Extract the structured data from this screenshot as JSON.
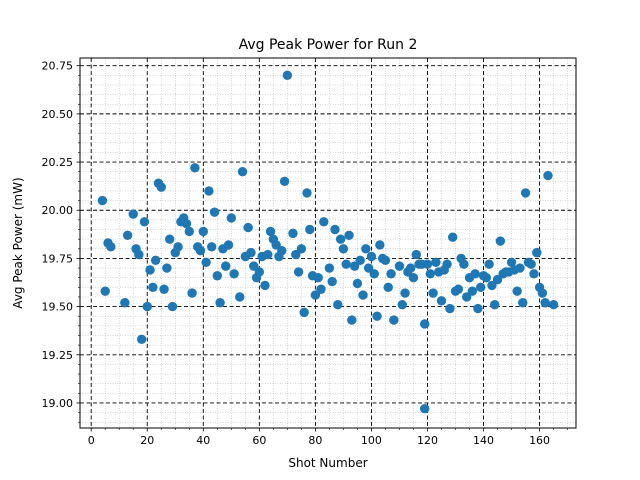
{
  "chart_data": {
    "type": "scatter",
    "title": "Avg Peak Power for Run 2",
    "xlabel": "Shot Number",
    "ylabel": "Avg Peak Power (mW)",
    "xlim": [
      -4,
      173
    ],
    "ylim": [
      18.87,
      20.79
    ],
    "xticks": [
      0,
      20,
      40,
      60,
      80,
      100,
      120,
      140,
      160
    ],
    "yticks": [
      19.0,
      19.25,
      19.5,
      19.75,
      20.0,
      20.25,
      20.5,
      20.75
    ],
    "xtick_labels": [
      "0",
      "20",
      "40",
      "60",
      "80",
      "100",
      "120",
      "140",
      "160"
    ],
    "ytick_labels": [
      "19.00",
      "19.25",
      "19.50",
      "19.75",
      "20.00",
      "20.25",
      "20.50",
      "20.75"
    ],
    "grid": {
      "major": true,
      "minor": true
    },
    "marker_color": "#1f77b4",
    "series": [
      {
        "points": [
          [
            4,
            20.05
          ],
          [
            5,
            19.58
          ],
          [
            6,
            19.83
          ],
          [
            7,
            19.81
          ],
          [
            12,
            19.52
          ],
          [
            13,
            19.87
          ],
          [
            15,
            19.98
          ],
          [
            16,
            19.8
          ],
          [
            17,
            19.77
          ],
          [
            18,
            19.33
          ],
          [
            19,
            19.94
          ],
          [
            20,
            19.5
          ],
          [
            21,
            19.69
          ],
          [
            22,
            19.6
          ],
          [
            23,
            19.74
          ],
          [
            24,
            20.14
          ],
          [
            25,
            20.12
          ],
          [
            26,
            19.59
          ],
          [
            27,
            19.7
          ],
          [
            28,
            19.85
          ],
          [
            29,
            19.5
          ],
          [
            30,
            19.78
          ],
          [
            31,
            19.81
          ],
          [
            32,
            19.94
          ],
          [
            33,
            19.96
          ],
          [
            34,
            19.93
          ],
          [
            35,
            19.89
          ],
          [
            36,
            19.57
          ],
          [
            37,
            20.22
          ],
          [
            38,
            19.81
          ],
          [
            39,
            19.79
          ],
          [
            40,
            19.89
          ],
          [
            41,
            19.73
          ],
          [
            42,
            20.1
          ],
          [
            43,
            19.81
          ],
          [
            44,
            19.99
          ],
          [
            45,
            19.66
          ],
          [
            46,
            19.52
          ],
          [
            47,
            19.8
          ],
          [
            48,
            19.71
          ],
          [
            49,
            19.82
          ],
          [
            50,
            19.96
          ],
          [
            51,
            19.67
          ],
          [
            53,
            19.55
          ],
          [
            54,
            20.2
          ],
          [
            55,
            19.76
          ],
          [
            56,
            19.91
          ],
          [
            57,
            19.78
          ],
          [
            58,
            19.71
          ],
          [
            59,
            19.65
          ],
          [
            60,
            19.68
          ],
          [
            61,
            19.76
          ],
          [
            62,
            19.61
          ],
          [
            63,
            19.77
          ],
          [
            64,
            19.89
          ],
          [
            65,
            19.85
          ],
          [
            66,
            19.82
          ],
          [
            67,
            19.76
          ],
          [
            68,
            19.79
          ],
          [
            69,
            20.15
          ],
          [
            70,
            20.7
          ],
          [
            72,
            19.88
          ],
          [
            73,
            19.77
          ],
          [
            74,
            19.68
          ],
          [
            75,
            19.8
          ],
          [
            76,
            19.47
          ],
          [
            77,
            20.09
          ],
          [
            78,
            19.9
          ],
          [
            79,
            19.66
          ],
          [
            80,
            19.56
          ],
          [
            81,
            19.65
          ],
          [
            82,
            19.59
          ],
          [
            83,
            19.94
          ],
          [
            85,
            19.7
          ],
          [
            86,
            19.63
          ],
          [
            87,
            19.9
          ],
          [
            88,
            19.51
          ],
          [
            89,
            19.85
          ],
          [
            90,
            19.8
          ],
          [
            91,
            19.72
          ],
          [
            92,
            19.87
          ],
          [
            93,
            19.43
          ],
          [
            94,
            19.71
          ],
          [
            95,
            19.62
          ],
          [
            96,
            19.74
          ],
          [
            97,
            19.56
          ],
          [
            98,
            19.8
          ],
          [
            99,
            19.7
          ],
          [
            100,
            19.76
          ],
          [
            101,
            19.67
          ],
          [
            102,
            19.45
          ],
          [
            103,
            19.82
          ],
          [
            104,
            19.75
          ],
          [
            105,
            19.74
          ],
          [
            106,
            19.6
          ],
          [
            107,
            19.67
          ],
          [
            108,
            19.43
          ],
          [
            110,
            19.71
          ],
          [
            111,
            19.51
          ],
          [
            112,
            19.57
          ],
          [
            113,
            19.68
          ],
          [
            114,
            19.7
          ],
          [
            115,
            19.65
          ],
          [
            116,
            19.77
          ],
          [
            117,
            19.72
          ],
          [
            118,
            19.72
          ],
          [
            119,
            19.41
          ],
          [
            120,
            19.72
          ],
          [
            121,
            19.67
          ],
          [
            122,
            19.57
          ],
          [
            123,
            19.73
          ],
          [
            124,
            19.68
          ],
          [
            125,
            19.53
          ],
          [
            126,
            19.69
          ],
          [
            127,
            19.72
          ],
          [
            128,
            19.49
          ],
          [
            129,
            19.86
          ],
          [
            130,
            19.58
          ],
          [
            131,
            19.59
          ],
          [
            132,
            19.75
          ],
          [
            133,
            19.72
          ],
          [
            134,
            19.55
          ],
          [
            135,
            19.65
          ],
          [
            136,
            19.58
          ],
          [
            137,
            19.67
          ],
          [
            138,
            19.49
          ],
          [
            139,
            19.6
          ],
          [
            140,
            19.66
          ],
          [
            141,
            19.65
          ],
          [
            142,
            19.72
          ],
          [
            143,
            19.61
          ],
          [
            144,
            19.51
          ],
          [
            145,
            19.64
          ],
          [
            146,
            19.84
          ],
          [
            147,
            19.67
          ],
          [
            148,
            19.68
          ],
          [
            149,
            19.68
          ],
          [
            150,
            19.73
          ],
          [
            151,
            19.69
          ],
          [
            152,
            19.58
          ],
          [
            153,
            19.7
          ],
          [
            154,
            19.52
          ],
          [
            155,
            20.09
          ],
          [
            156,
            19.73
          ],
          [
            157,
            19.72
          ],
          [
            158,
            19.67
          ],
          [
            159,
            19.78
          ],
          [
            160,
            19.6
          ],
          [
            161,
            19.57
          ],
          [
            162,
            19.52
          ],
          [
            163,
            20.18
          ],
          [
            165,
            19.51
          ]
        ]
      },
      {
        "points": [
          [
            119,
            18.97
          ]
        ]
      }
    ]
  }
}
